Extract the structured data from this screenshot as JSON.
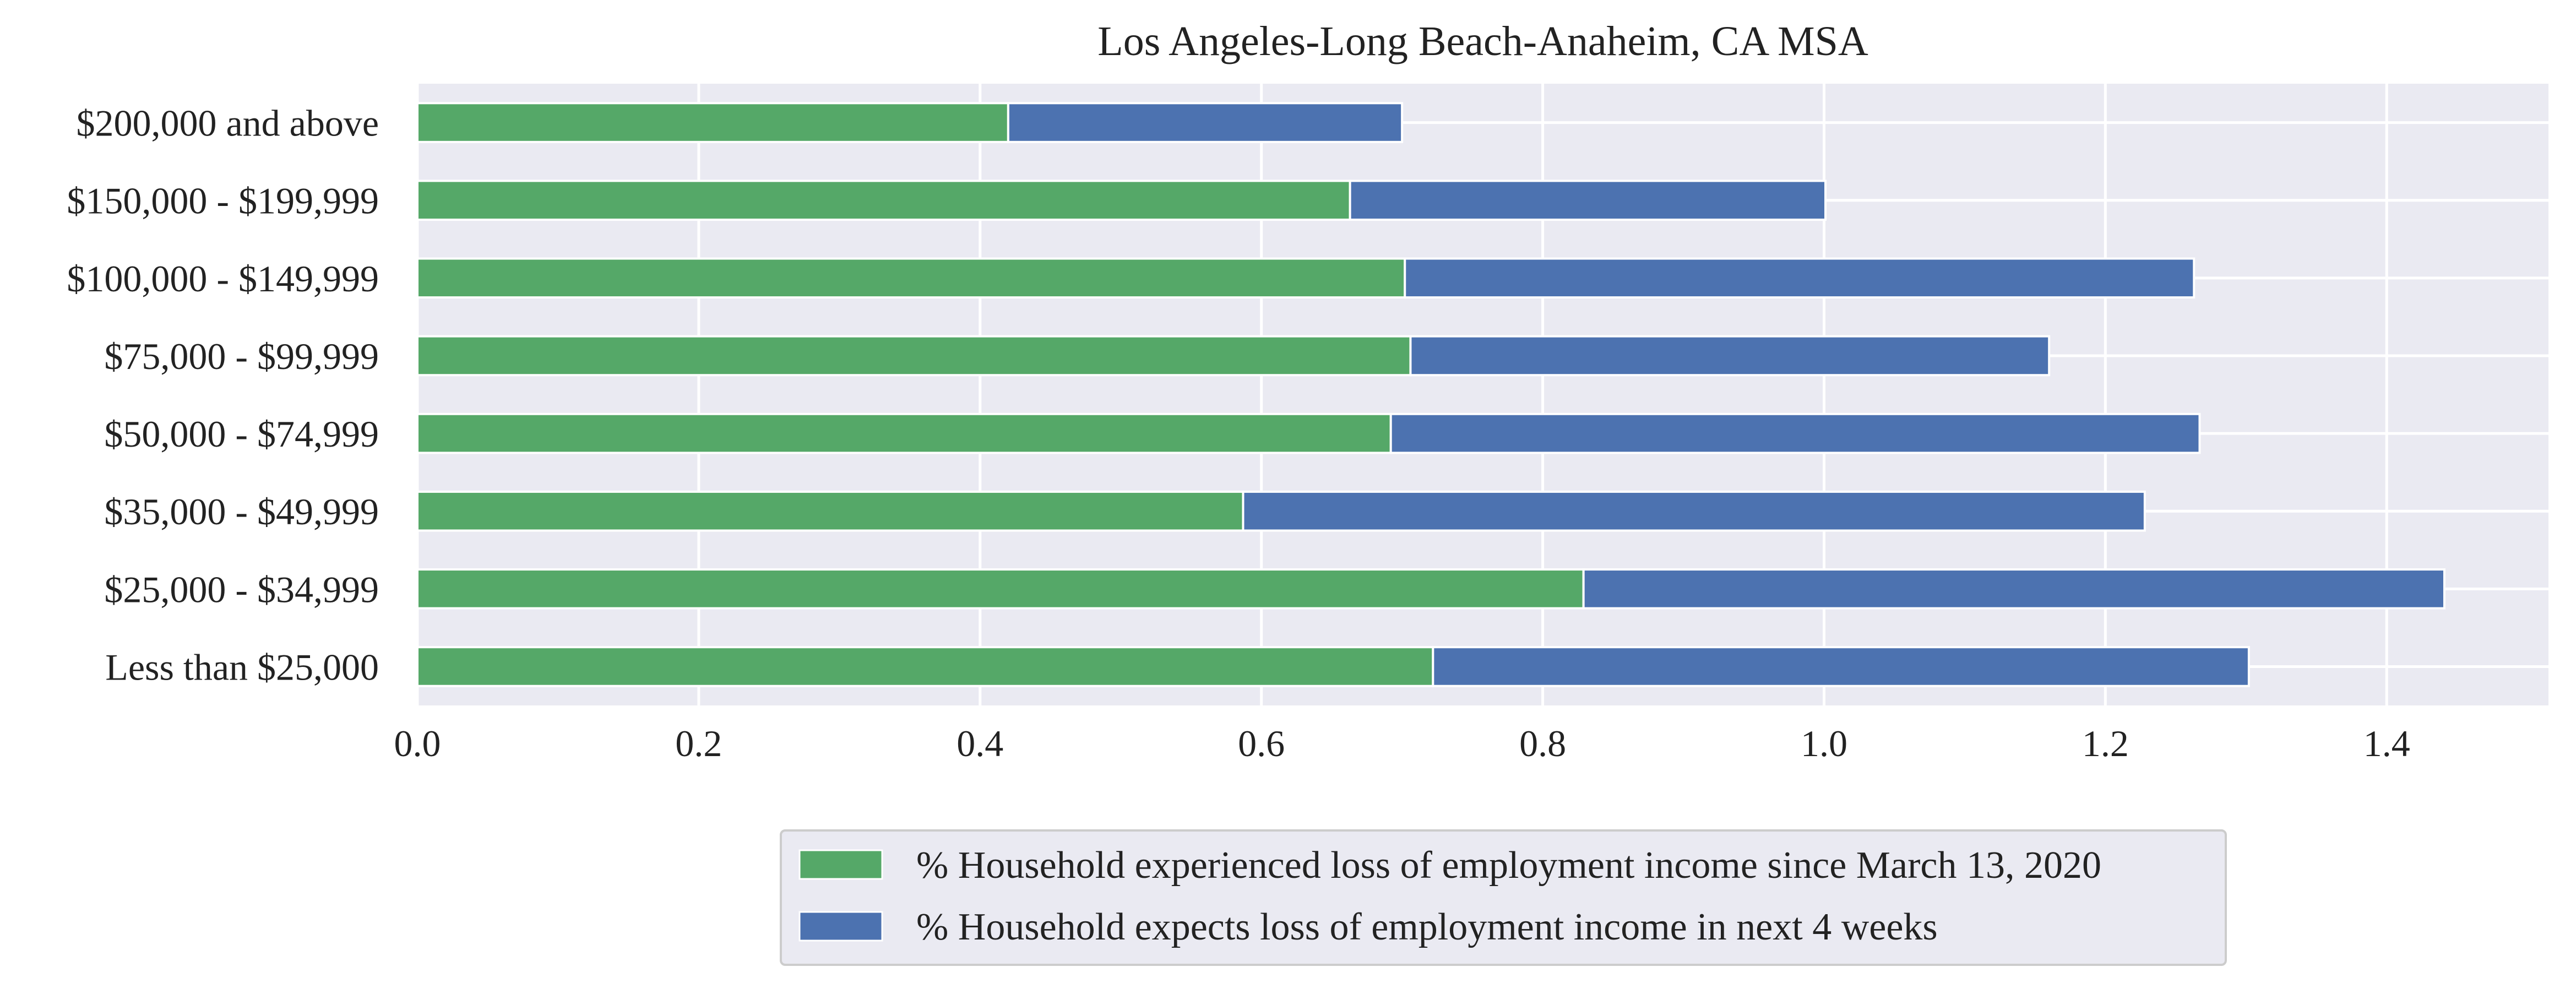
{
  "chart_data": {
    "type": "bar",
    "orientation": "horizontal",
    "stacked": true,
    "title": "Los Angeles-Long Beach-Anaheim, CA MSA",
    "xlabel": "",
    "ylabel": "",
    "xlim": [
      0,
      1.515
    ],
    "x_ticks": [
      "0.0",
      "0.2",
      "0.4",
      "0.6",
      "0.8",
      "1.0",
      "1.2",
      "1.4"
    ],
    "categories": [
      "Less than $25,000",
      "$25,000 - $34,999",
      "$35,000 - $49,999",
      "$50,000 - $74,999",
      "$75,000 - $99,999",
      "$100,000 - $149,999",
      "$150,000 - $199,999",
      "$200,000 and above"
    ],
    "series": [
      {
        "name": "% Household experienced loss of employment income since March 13, 2020",
        "color": "#55a868",
        "values": [
          0.722,
          0.829,
          0.587,
          0.692,
          0.706,
          0.702,
          0.663,
          0.42
        ]
      },
      {
        "name": "% Household expects loss of employment income in next 4 weeks",
        "color": "#4c72b0",
        "values": [
          0.58,
          0.612,
          0.641,
          0.575,
          0.454,
          0.561,
          0.338,
          0.28
        ]
      }
    ],
    "grid": true,
    "legend_position": "bottom-center",
    "background_color": "#eaeaf2"
  }
}
